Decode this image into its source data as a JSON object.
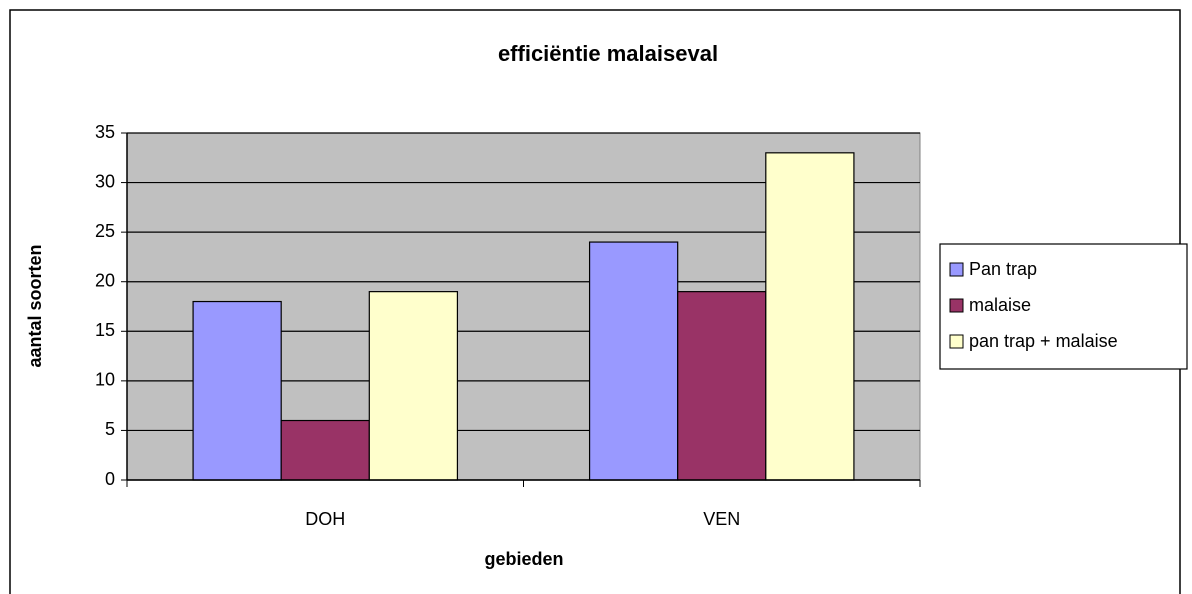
{
  "chart_data": {
    "type": "bar",
    "title": "efficiëntie malaiseval",
    "x_label": "gebieden",
    "y_label": "aantal soorten",
    "categories": [
      "DOH",
      "VEN"
    ],
    "series": [
      {
        "name": "Pan trap",
        "color": "#9999ff",
        "values": [
          18,
          24
        ]
      },
      {
        "name": "malaise",
        "color": "#993366",
        "values": [
          6,
          19
        ]
      },
      {
        "name": "pan trap + malaise",
        "color": "#ffffcc",
        "values": [
          19,
          33
        ]
      }
    ],
    "ylim": [
      0,
      35
    ],
    "yticks": [
      0,
      5,
      10,
      15,
      20,
      25,
      30,
      35
    ],
    "grid": true,
    "legend": "right",
    "plot_background": "#c0c0c0"
  }
}
